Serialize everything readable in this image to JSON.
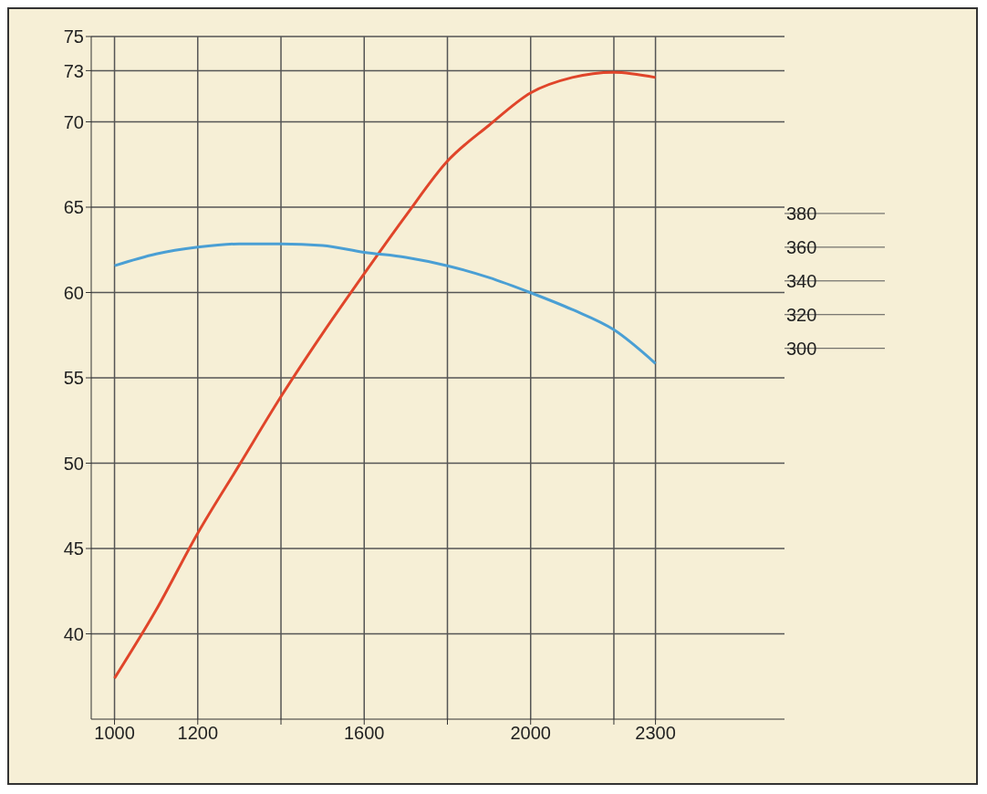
{
  "chart_data": {
    "type": "line",
    "x": [
      1000,
      1100,
      1200,
      1300,
      1400,
      1500,
      1600,
      1700,
      1800,
      1900,
      2000,
      2100,
      2200,
      2300
    ],
    "series": [
      {
        "color": "#e0452a",
        "values": [
          37.4,
          41.4,
          45.9,
          49.9,
          53.9,
          57.6,
          61.1,
          64.5,
          67.7,
          69.8,
          71.7,
          72.6,
          72.9,
          72.6
        ]
      },
      {
        "color": "#4a9fd4",
        "axis": "y2",
        "values": [
          349,
          356,
          360,
          362,
          362,
          361,
          357,
          354,
          349,
          342,
          333,
          323,
          311,
          291
        ]
      }
    ],
    "xlim": [
      944,
      2610
    ],
    "xticks": [
      1000,
      1200,
      {
        "value": 1400,
        "label": null
      },
      1600,
      {
        "value": 1800,
        "label": null
      },
      2000,
      {
        "value": 2200,
        "label": null
      },
      2300
    ],
    "ylim": [
      35,
      75
    ],
    "yticks": [
      40,
      45,
      50,
      55,
      60,
      65,
      70,
      73,
      75
    ],
    "y2lim": [
      80,
      485
    ],
    "y2ticks": [
      300,
      320,
      340,
      360,
      380
    ],
    "grid": true,
    "legend": false,
    "marker": "none",
    "line_style": "solid"
  }
}
